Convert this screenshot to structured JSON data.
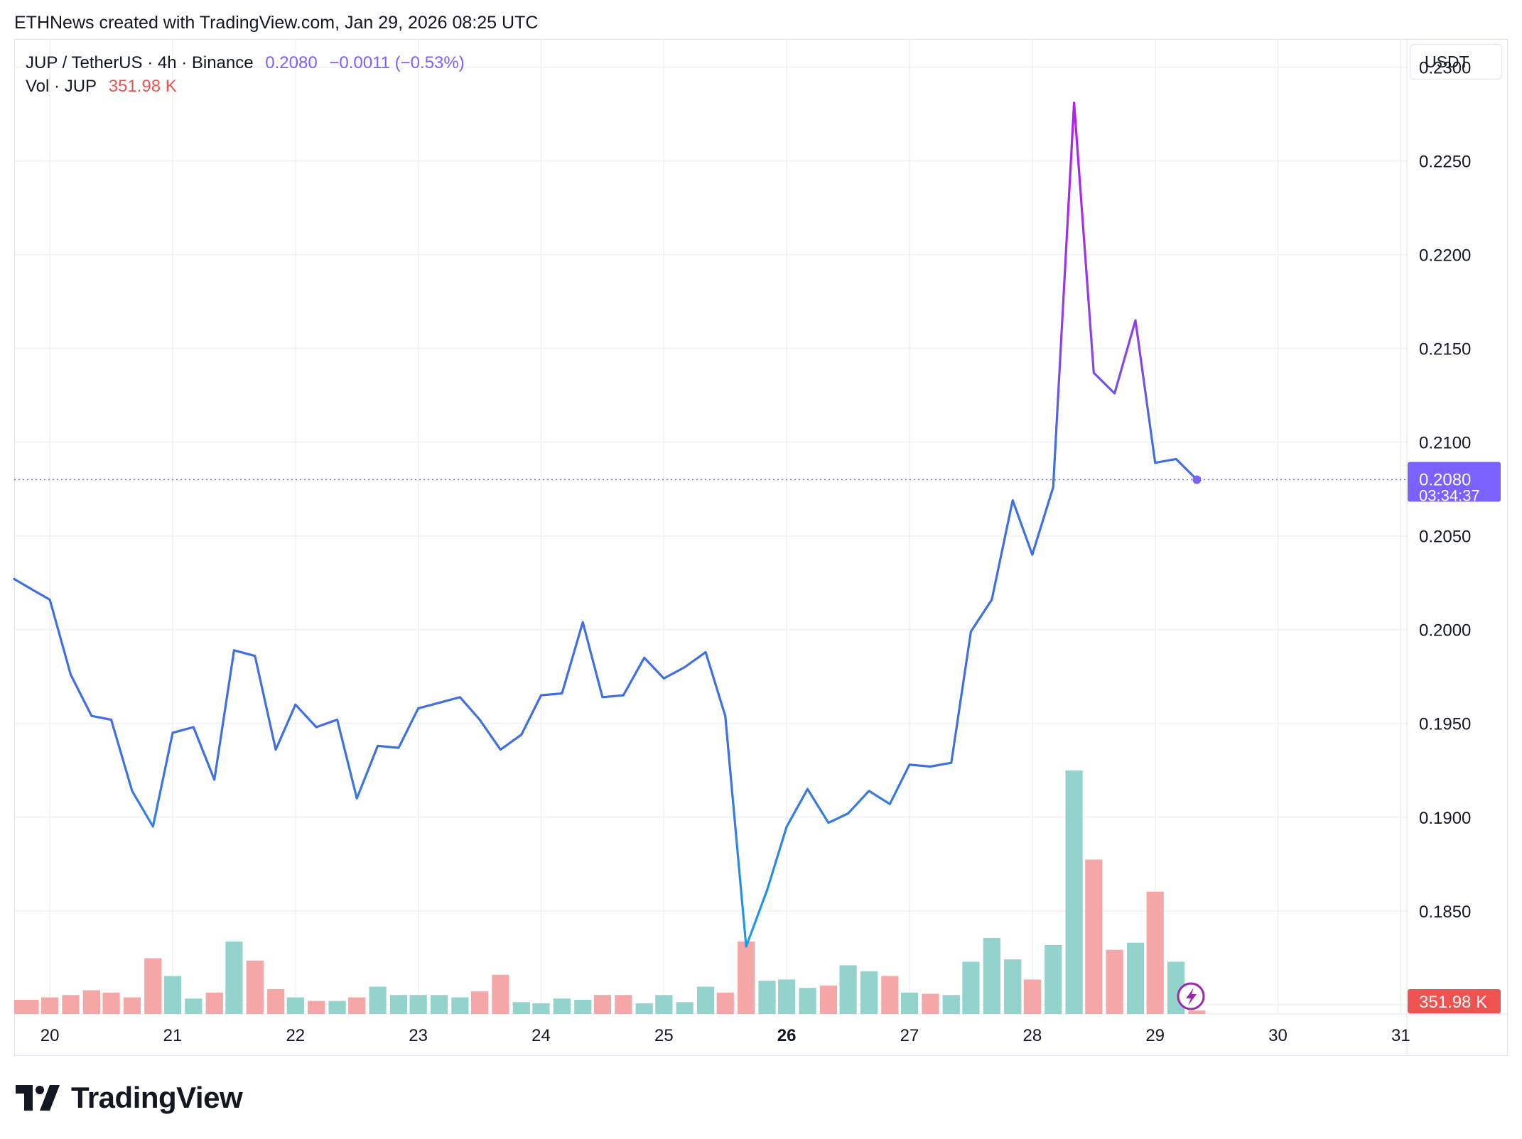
{
  "header": {
    "credit": "ETHNews created with TradingView.com, Jan 29, 2026 08:25 UTC"
  },
  "legend": {
    "symbol": "JUP / TetherUS · 4h · Binance",
    "last_price": "0.2080",
    "change": "−0.0011 (−0.53%)",
    "volume_label": "Vol · JUP",
    "volume_value": "351.98 K"
  },
  "currency": "USDT",
  "price_tag": {
    "price": "0.2080",
    "countdown": "03:34:37"
  },
  "volume_tag": "351.98 K",
  "brand": {
    "name": "TradingView"
  },
  "colors": {
    "line_blue": "#3f6fe0",
    "line_light_blue": "#1e9be6",
    "line_purple": "#8a44e8",
    "line_magenta": "#b21ff0",
    "price_tag_bg": "#7b61ff",
    "volume_up": "#93d3cb",
    "volume_down": "#f5a6a6",
    "volume_tag_bg": "#ef5350"
  },
  "chart_data": {
    "type": "line",
    "title": "JUP / TetherUS · 4h · Binance",
    "ylim": [
      0.1795,
      0.2315
    ],
    "y_ticks": [
      "0.2300",
      "0.2250",
      "0.2200",
      "0.2150",
      "0.2100",
      "0.2050",
      "0.2000",
      "0.1950",
      "0.1900",
      "0.1850",
      "0.1800"
    ],
    "x_ticks": [
      "20",
      "21",
      "22",
      "23",
      "24",
      "25",
      "26",
      "27",
      "28",
      "29",
      "30",
      "31"
    ],
    "x_tick_bold": "26",
    "x_range_days": [
      19.71,
      31.05
    ],
    "grid": true,
    "series": [
      {
        "x": [
          19.71,
          19.84,
          20.0,
          20.17,
          20.34,
          20.5,
          20.67,
          20.84,
          21.0,
          21.17,
          21.34,
          21.5,
          21.67,
          21.84,
          22.0,
          22.17,
          22.34,
          22.5,
          22.67,
          22.84,
          23.0,
          23.17,
          23.34,
          23.5,
          23.67,
          23.84,
          24.0,
          24.17,
          24.34,
          24.5,
          24.67,
          24.84,
          25.0,
          25.17,
          25.34,
          25.5,
          25.67,
          25.84,
          26.0,
          26.17,
          26.34,
          26.5,
          26.67,
          26.84,
          27.0,
          27.17,
          27.34,
          27.5,
          27.67,
          27.84,
          28.0,
          28.17,
          28.34,
          28.5,
          28.67,
          28.84,
          29.0,
          29.17,
          29.34
        ],
        "y": [
          0.2027,
          0.2022,
          0.2016,
          0.1976,
          0.1954,
          0.1952,
          0.1914,
          0.1895,
          0.1945,
          0.1948,
          0.192,
          0.1989,
          0.1986,
          0.1936,
          0.196,
          0.1948,
          0.1952,
          0.191,
          0.1938,
          0.1937,
          0.1958,
          0.1961,
          0.1964,
          0.1952,
          0.1936,
          0.1944,
          0.1965,
          0.1966,
          0.2004,
          0.1964,
          0.1965,
          0.1985,
          0.1974,
          0.198,
          0.1988,
          0.1954,
          0.1831,
          0.1861,
          0.1895,
          0.1915,
          0.1897,
          0.1902,
          0.1914,
          0.1907,
          0.1928,
          0.1927,
          0.1929,
          0.1999,
          0.2016,
          0.2069,
          0.204,
          0.2076,
          0.2281,
          0.2137,
          0.2126,
          0.2165,
          0.2089,
          0.2091,
          0.208
        ]
      }
    ],
    "volume": {
      "label": "Vol · JUP",
      "x": [
        19.71,
        19.84,
        20.0,
        20.17,
        20.34,
        20.5,
        20.67,
        20.84,
        21.0,
        21.17,
        21.34,
        21.5,
        21.67,
        21.84,
        22.0,
        22.17,
        22.34,
        22.5,
        22.67,
        22.84,
        23.0,
        23.17,
        23.34,
        23.5,
        23.67,
        23.84,
        24.0,
        24.17,
        24.34,
        24.5,
        24.67,
        24.84,
        25.0,
        25.17,
        25.34,
        25.5,
        25.67,
        25.84,
        26.0,
        26.17,
        26.34,
        26.5,
        26.67,
        26.84,
        27.0,
        27.17,
        27.34,
        27.5,
        27.67,
        27.84,
        28.0,
        28.17,
        28.34,
        28.5,
        28.67,
        28.84,
        29.0,
        29.17,
        29.34
      ],
      "values": [
        12,
        12,
        14,
        16,
        20,
        18,
        14,
        47,
        32,
        13,
        18,
        61,
        45,
        21,
        14,
        11,
        11,
        14,
        23,
        16,
        16,
        16,
        14,
        19,
        33,
        10,
        9,
        13,
        12,
        16,
        16,
        9,
        16,
        10,
        23,
        18,
        61,
        28,
        29,
        22,
        24,
        41,
        36,
        32,
        18,
        17,
        16,
        44,
        64,
        46,
        29,
        58,
        205,
        130,
        54,
        60,
        103,
        44,
        3
      ],
      "direction": [
        "down",
        "down",
        "down",
        "down",
        "down",
        "down",
        "down",
        "down",
        "up",
        "up",
        "down",
        "up",
        "down",
        "down",
        "up",
        "down",
        "up",
        "down",
        "up",
        "up",
        "up",
        "up",
        "up",
        "down",
        "down",
        "up",
        "up",
        "up",
        "up",
        "down",
        "down",
        "up",
        "up",
        "up",
        "up",
        "down",
        "down",
        "up",
        "up",
        "up",
        "down",
        "up",
        "up",
        "down",
        "up",
        "down",
        "up",
        "up",
        "up",
        "up",
        "down",
        "up",
        "up",
        "down",
        "down",
        "up",
        "down",
        "up",
        "down"
      ]
    }
  }
}
